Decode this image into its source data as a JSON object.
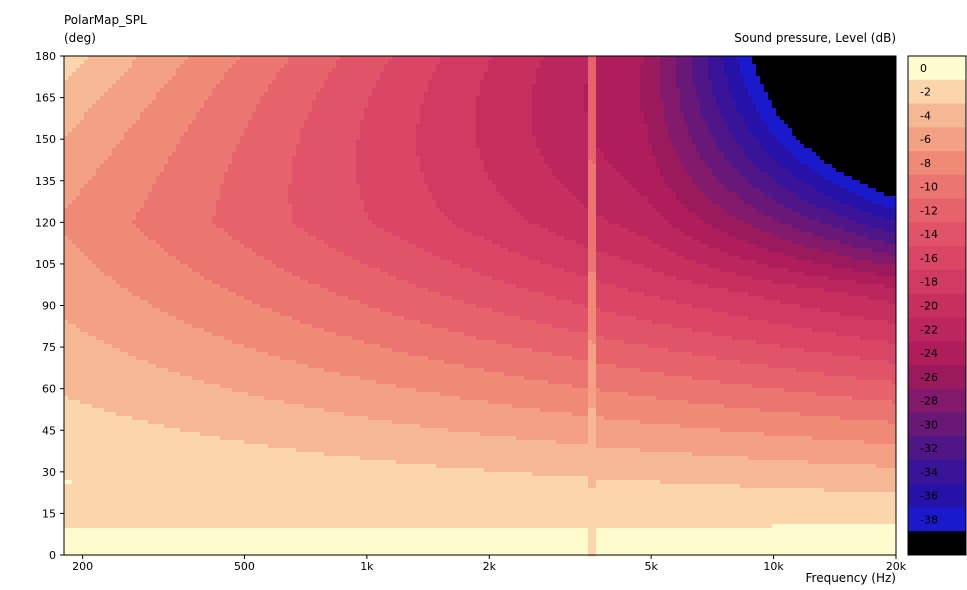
{
  "chart_data": {
    "type": "heatmap",
    "title": "PolarMap_SPL",
    "ylabel": "(deg)",
    "xlabel": "Frequency  (Hz)",
    "colorbar_label": "Sound pressure, Level  (dB)",
    "x_scale": "log",
    "xlim": [
      180,
      20000
    ],
    "ylim": [
      0,
      180
    ],
    "x_ticks": [
      200,
      500,
      1000,
      2000,
      5000,
      10000,
      20000
    ],
    "x_tick_labels": [
      "200",
      "500",
      "1k",
      "2k",
      "5k",
      "10k",
      "20k"
    ],
    "y_ticks": [
      0,
      15,
      30,
      45,
      60,
      75,
      90,
      105,
      120,
      135,
      150,
      165,
      180
    ],
    "colorbar_levels": [
      0,
      -2,
      -4,
      -6,
      -8,
      -10,
      -12,
      -14,
      -16,
      -18,
      -20,
      -22,
      -24,
      -26,
      -28,
      -30,
      -32,
      -34,
      -36,
      -38,
      -40
    ],
    "colorbar_colors": [
      "#fefbcf",
      "#fbd6ad",
      "#f6b795",
      "#f3a084",
      "#ef8a77",
      "#eb7570",
      "#e6636b",
      "#e05368",
      "#d94666",
      "#d03a63",
      "#c6305f",
      "#bc265e",
      "#b01d5b",
      "#9b1a5e",
      "#83196a",
      "#6a1878",
      "#4f1688",
      "#3a1498",
      "#2712a8",
      "#1a1acc",
      "#000000"
    ],
    "notes": "SPL polar map: level decreases with angle and frequency; interference ridge near 3.6 kHz"
  }
}
